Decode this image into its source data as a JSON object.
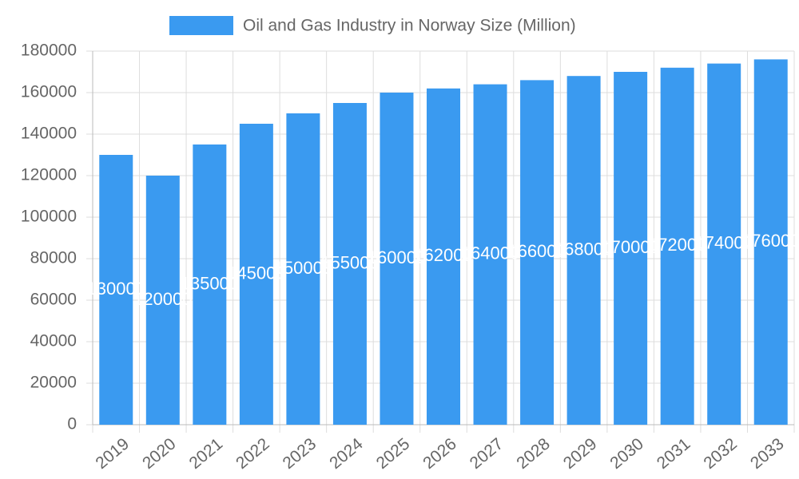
{
  "chart_data": {
    "type": "bar",
    "categories": [
      "2019",
      "2020",
      "2021",
      "2022",
      "2023",
      "2024",
      "2025",
      "2026",
      "2027",
      "2028",
      "2029",
      "2030",
      "2031",
      "2032",
      "2033"
    ],
    "series": [
      {
        "name": "Oil and Gas Industry in Norway Size (Million)",
        "color": "#3a9af0",
        "values": [
          130000,
          120000,
          135000,
          145000,
          150000,
          155000,
          160000,
          162000,
          164000,
          166000,
          168000,
          170000,
          172000,
          174000,
          176000
        ]
      }
    ],
    "ylim": [
      0,
      180000
    ],
    "yticks": [
      0,
      20000,
      40000,
      60000,
      80000,
      100000,
      120000,
      140000,
      160000,
      180000
    ],
    "grid": true,
    "legend": "top"
  }
}
